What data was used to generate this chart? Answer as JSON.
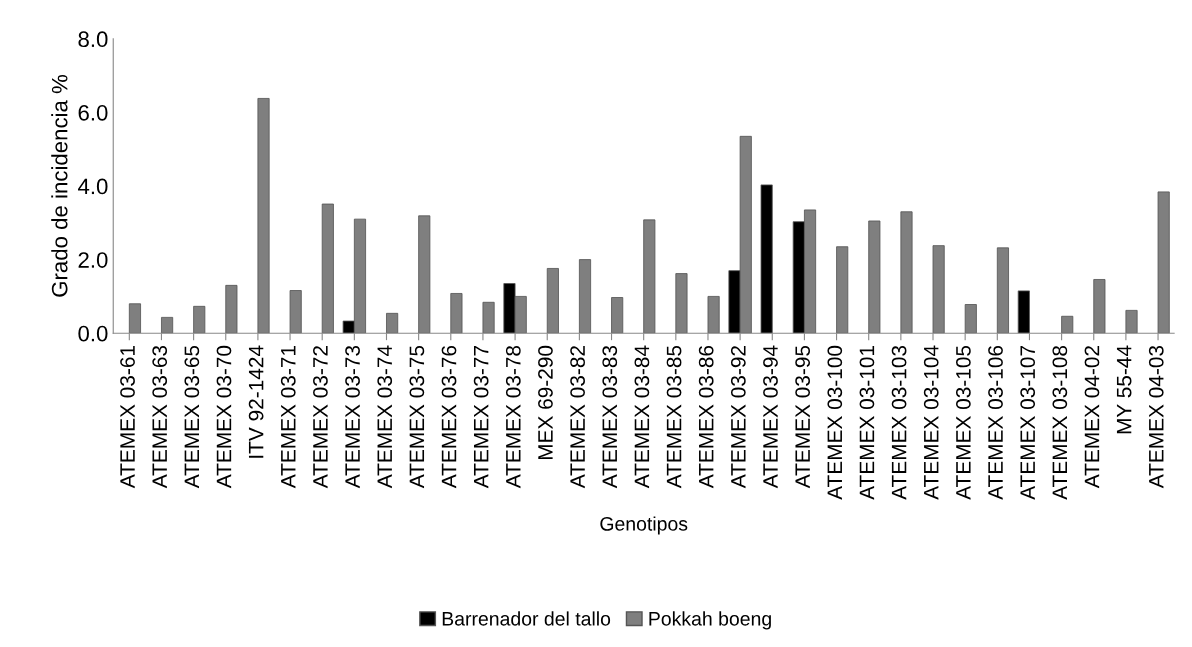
{
  "chart_data": {
    "type": "bar",
    "xlabel": "Genotipos",
    "ylabel": "Grado de incidencia %",
    "categories": [
      "ATEMEX 03-61",
      "ATEMEX 03-63",
      "ATEMEX 03-65",
      "ATEMEX 03-70",
      "ITV 92-1424",
      "ATEMEX 03-71",
      "ATEMEX 03-72",
      "ATEMEX 03-73",
      "ATEMEX 03-74",
      "ATEMEX 03-75",
      "ATEMEX 03-76",
      "ATEMEX 03-77",
      "ATEMEX 03-78",
      "MEX 69-290",
      "ATEMEX 03-82",
      "ATEMEX 03-83",
      "ATEMEX 03-84",
      "ATEMEX 03-85",
      "ATEMEX 03-86",
      "ATEMEX 03-92",
      "ATEMEX 03-94",
      "ATEMEX 03-95",
      "ATEMEX 03-100",
      "ATEMEX 03-101",
      "ATEMEX 03-103",
      "ATEMEX 03-104",
      "ATEMEX 03-105",
      "ATEMEX 03-106",
      "ATEMEX 03-107",
      "ATEMEX 03-108",
      "ATEMEX 04-02",
      "MY 55-44",
      "ATEMEX 04-03"
    ],
    "series": [
      {
        "name": "Barrenador del tallo",
        "color": "#000000",
        "values": [
          null,
          null,
          null,
          null,
          null,
          null,
          null,
          0.33,
          null,
          null,
          null,
          null,
          1.35,
          null,
          null,
          null,
          null,
          null,
          null,
          1.7,
          4.03,
          3.03,
          null,
          null,
          null,
          null,
          null,
          null,
          1.15,
          null,
          null,
          null,
          null
        ]
      },
      {
        "name": "Pokkah boeng",
        "color": "#7f7f7f",
        "values": [
          0.8,
          0.43,
          0.73,
          1.3,
          6.38,
          1.16,
          3.51,
          3.1,
          0.54,
          3.19,
          1.08,
          0.84,
          1.0,
          1.76,
          2.0,
          0.97,
          3.08,
          1.62,
          1.0,
          5.35,
          null,
          3.35,
          2.35,
          3.05,
          3.3,
          2.38,
          0.78,
          2.32,
          null,
          0.46,
          1.46,
          0.62,
          3.84
        ]
      }
    ],
    "ylim": [
      0,
      8
    ],
    "yticks": [
      {
        "value": 0,
        "label": "0.0"
      },
      {
        "value": 2,
        "label": "2.0"
      },
      {
        "value": 4,
        "label": "4.0"
      },
      {
        "value": 6,
        "label": "6.0"
      },
      {
        "value": 8,
        "label": "8.0"
      }
    ],
    "grid": false,
    "legend": "bottom"
  }
}
